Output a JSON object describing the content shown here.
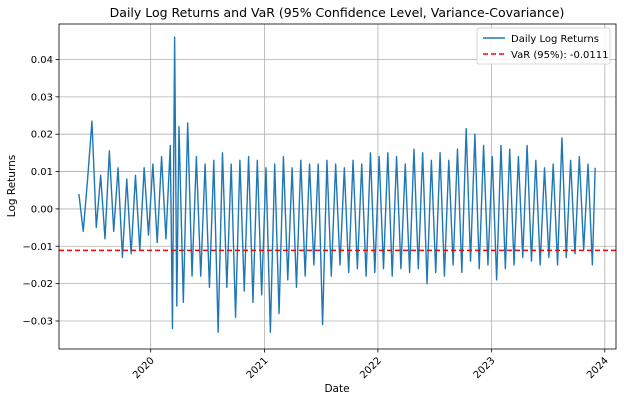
{
  "chart_data": {
    "type": "line",
    "title": "Daily Log Returns and VaR (95% Confidence Level, Variance-Covariance)",
    "xlabel": "Date",
    "ylabel": "Log Returns",
    "xlim": [
      "2019-03-12",
      "2024-02-06"
    ],
    "ylim": [
      -0.0375,
      0.0495
    ],
    "x_ticks": [
      "2020",
      "2021",
      "2022",
      "2023",
      "2024"
    ],
    "y_ticks": [
      {
        "value": 0.04,
        "label": "0.04"
      },
      {
        "value": 0.03,
        "label": "0.03"
      },
      {
        "value": 0.02,
        "label": "0.02"
      },
      {
        "value": 0.01,
        "label": "0.01"
      },
      {
        "value": 0.0,
        "label": "0.00"
      },
      {
        "value": -0.01,
        "label": "−0.01"
      },
      {
        "value": -0.02,
        "label": "−0.02"
      },
      {
        "value": -0.03,
        "label": "−0.03"
      }
    ],
    "grid": true,
    "legend_position": "top-right",
    "series": [
      {
        "name": "Daily Log Returns",
        "color": "#1f77b4",
        "x": [
          "2019-05-15",
          "2019-05-29",
          "2019-06-12",
          "2019-06-26",
          "2019-07-10",
          "2019-07-24",
          "2019-08-07",
          "2019-08-21",
          "2019-09-04",
          "2019-09-18",
          "2019-10-02",
          "2019-10-16",
          "2019-10-30",
          "2019-11-13",
          "2019-11-27",
          "2019-12-11",
          "2019-12-25",
          "2020-01-08",
          "2020-01-22",
          "2020-02-05",
          "2020-02-19",
          "2020-03-04",
          "2020-03-11",
          "2020-03-18",
          "2020-03-25",
          "2020-04-01",
          "2020-04-15",
          "2020-04-29",
          "2020-05-13",
          "2020-05-27",
          "2020-06-10",
          "2020-06-24",
          "2020-07-08",
          "2020-07-22",
          "2020-08-05",
          "2020-08-19",
          "2020-09-02",
          "2020-09-16",
          "2020-09-30",
          "2020-10-14",
          "2020-10-28",
          "2020-11-11",
          "2020-11-25",
          "2020-12-09",
          "2020-12-23",
          "2021-01-06",
          "2021-01-20",
          "2021-02-03",
          "2021-02-17",
          "2021-03-03",
          "2021-03-17",
          "2021-03-31",
          "2021-04-14",
          "2021-04-28",
          "2021-05-12",
          "2021-05-26",
          "2021-06-09",
          "2021-06-23",
          "2021-07-07",
          "2021-07-21",
          "2021-08-04",
          "2021-08-18",
          "2021-09-01",
          "2021-09-15",
          "2021-09-29",
          "2021-10-13",
          "2021-10-27",
          "2021-11-10",
          "2021-11-24",
          "2021-12-08",
          "2021-12-22",
          "2022-01-05",
          "2022-01-19",
          "2022-02-02",
          "2022-02-16",
          "2022-03-02",
          "2022-03-16",
          "2022-03-30",
          "2022-04-13",
          "2022-04-27",
          "2022-05-11",
          "2022-05-25",
          "2022-06-08",
          "2022-06-22",
          "2022-07-06",
          "2022-07-20",
          "2022-08-03",
          "2022-08-17",
          "2022-08-31",
          "2022-09-14",
          "2022-09-28",
          "2022-10-12",
          "2022-10-26",
          "2022-11-09",
          "2022-11-23",
          "2022-12-07",
          "2022-12-21",
          "2023-01-04",
          "2023-01-18",
          "2023-02-01",
          "2023-02-15",
          "2023-03-01",
          "2023-03-15",
          "2023-03-29",
          "2023-04-12",
          "2023-04-26",
          "2023-05-10",
          "2023-05-24",
          "2023-06-07",
          "2023-06-21",
          "2023-07-05",
          "2023-07-19",
          "2023-08-02",
          "2023-08-16",
          "2023-08-30",
          "2023-09-13",
          "2023-09-27",
          "2023-10-11",
          "2023-10-25",
          "2023-11-08",
          "2023-11-22",
          "2023-12-01"
        ],
        "values": [
          0.004,
          -0.006,
          0.008,
          0.0235,
          -0.005,
          0.009,
          -0.008,
          0.0155,
          -0.006,
          0.011,
          -0.013,
          0.008,
          -0.012,
          0.009,
          -0.011,
          0.011,
          -0.007,
          0.012,
          -0.009,
          0.014,
          -0.008,
          0.017,
          -0.032,
          0.046,
          -0.026,
          0.022,
          -0.025,
          0.023,
          -0.018,
          0.014,
          -0.018,
          0.012,
          -0.021,
          0.013,
          -0.033,
          0.015,
          -0.021,
          0.012,
          -0.029,
          0.013,
          -0.022,
          0.014,
          -0.025,
          0.013,
          -0.023,
          0.011,
          -0.033,
          0.012,
          -0.028,
          0.014,
          -0.019,
          0.011,
          -0.021,
          0.013,
          -0.018,
          0.012,
          -0.015,
          0.012,
          -0.031,
          0.013,
          -0.018,
          0.012,
          -0.015,
          0.011,
          -0.017,
          0.013,
          -0.016,
          0.012,
          -0.018,
          0.015,
          -0.017,
          0.014,
          -0.016,
          0.015,
          -0.018,
          0.014,
          -0.016,
          0.012,
          -0.017,
          0.016,
          -0.016,
          0.015,
          -0.02,
          0.013,
          -0.017,
          0.015,
          -0.018,
          0.013,
          -0.015,
          0.016,
          -0.017,
          0.0215,
          -0.014,
          0.02,
          -0.016,
          0.017,
          -0.015,
          0.014,
          -0.019,
          0.017,
          -0.016,
          0.016,
          -0.015,
          0.014,
          -0.013,
          0.017,
          -0.014,
          0.013,
          -0.015,
          0.011,
          -0.013,
          0.012,
          -0.015,
          0.019,
          -0.013,
          0.013,
          -0.012,
          0.014,
          -0.011,
          0.012,
          -0.015,
          0.011
        ]
      },
      {
        "name": "VaR (95%): -0.0111",
        "color": "#ff0000",
        "style": "dashed",
        "value": -0.0111
      }
    ]
  }
}
